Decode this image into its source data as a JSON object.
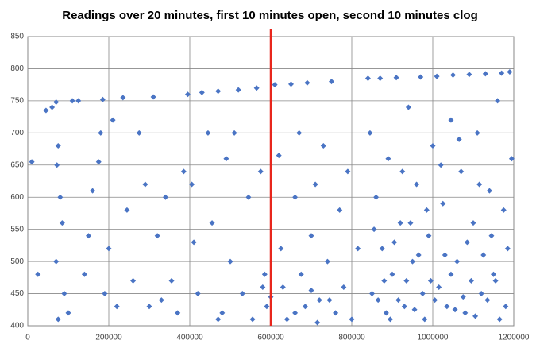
{
  "chart_data": {
    "type": "scatter",
    "title": "Readings over 20 minutes, first 10 minutes open, second 10 minutes clog",
    "series": [
      {
        "color": "#4a74c4",
        "x": [
          10000,
          25000,
          45000,
          60000,
          70000,
          75000,
          72000,
          80000,
          85000,
          70000,
          90000,
          100000,
          75000,
          110000,
          125000,
          140000,
          150000,
          160000,
          175000,
          180000,
          185000,
          190000,
          200000,
          210000,
          220000,
          235000,
          245000,
          260000,
          275000,
          290000,
          300000,
          310000,
          320000,
          340000,
          355000,
          370000,
          385000,
          395000,
          405000,
          410000,
          420000,
          430000,
          445000,
          455000,
          470000,
          480000,
          490000,
          500000,
          510000,
          520000,
          530000,
          545000,
          555000,
          565000,
          575000,
          585000,
          590000,
          610000,
          620000,
          625000,
          630000,
          640000,
          650000,
          660000,
          670000,
          675000,
          685000,
          690000,
          700000,
          710000,
          720000,
          730000,
          740000,
          750000,
          760000,
          770000,
          780000,
          790000,
          800000,
          815000,
          840000,
          845000,
          850000,
          860000,
          870000,
          875000,
          885000,
          890000,
          900000,
          910000,
          920000,
          930000,
          940000,
          950000,
          960000,
          970000,
          980000,
          990000,
          1000000,
          1010000,
          1015000,
          1025000,
          1035000,
          1045000,
          1050000,
          1060000,
          1070000,
          1080000,
          1090000,
          1100000,
          1110000,
          1120000,
          1130000,
          1140000,
          1150000,
          1160000,
          1170000,
          1180000,
          1190000,
          1185000,
          1195000,
          1175000,
          1165000,
          1155000,
          1145000,
          1135000,
          1125000,
          1115000,
          1105000,
          1095000,
          1085000,
          1075000,
          1065000,
          1055000,
          1045000,
          1030000,
          1020000,
          1005000,
          995000,
          985000,
          975000,
          965000,
          955000,
          945000,
          935000,
          925000,
          915000,
          905000,
          895000,
          880000,
          865000,
          855000,
          700000,
          715000,
          745000,
          660000,
          600000,
          580000,
          470000,
          330000
        ],
        "y": [
          655,
          480,
          735,
          740,
          748,
          680,
          650,
          600,
          560,
          500,
          450,
          420,
          410,
          750,
          750,
          480,
          540,
          610,
          655,
          700,
          752,
          450,
          520,
          720,
          430,
          755,
          580,
          470,
          700,
          620,
          430,
          756,
          540,
          600,
          470,
          420,
          640,
          760,
          620,
          530,
          450,
          763,
          700,
          560,
          765,
          420,
          660,
          500,
          700,
          767,
          450,
          600,
          410,
          770,
          640,
          480,
          430,
          775,
          665,
          520,
          460,
          410,
          776,
          600,
          700,
          480,
          430,
          778,
          540,
          620,
          440,
          680,
          500,
          780,
          420,
          580,
          460,
          640,
          410,
          520,
          785,
          700,
          450,
          600,
          785,
          520,
          420,
          660,
          480,
          786,
          560,
          430,
          740,
          500,
          620,
          787,
          410,
          540,
          680,
          788,
          460,
          590,
          430,
          720,
          790,
          500,
          640,
          420,
          791,
          560,
          700,
          450,
          792,
          610,
          480,
          750,
          793,
          430,
          795,
          520,
          660,
          580,
          410,
          470,
          540,
          440,
          510,
          620,
          415,
          470,
          530,
          445,
          690,
          425,
          480,
          510,
          650,
          440,
          470,
          580,
          450,
          510,
          425,
          560,
          470,
          640,
          440,
          530,
          410,
          470,
          440,
          550,
          455,
          405,
          440,
          420,
          445,
          460,
          410,
          440
        ]
      }
    ],
    "reference_line": {
      "x": 600000,
      "color": "#e8261c"
    },
    "xlim": [
      0,
      1200000
    ],
    "xticks": [
      0,
      200000,
      400000,
      600000,
      800000,
      1000000,
      1200000
    ],
    "ylim": [
      400,
      850
    ],
    "yticks": [
      400,
      450,
      500,
      550,
      600,
      650,
      700,
      750,
      800,
      850
    ],
    "grid": true
  }
}
